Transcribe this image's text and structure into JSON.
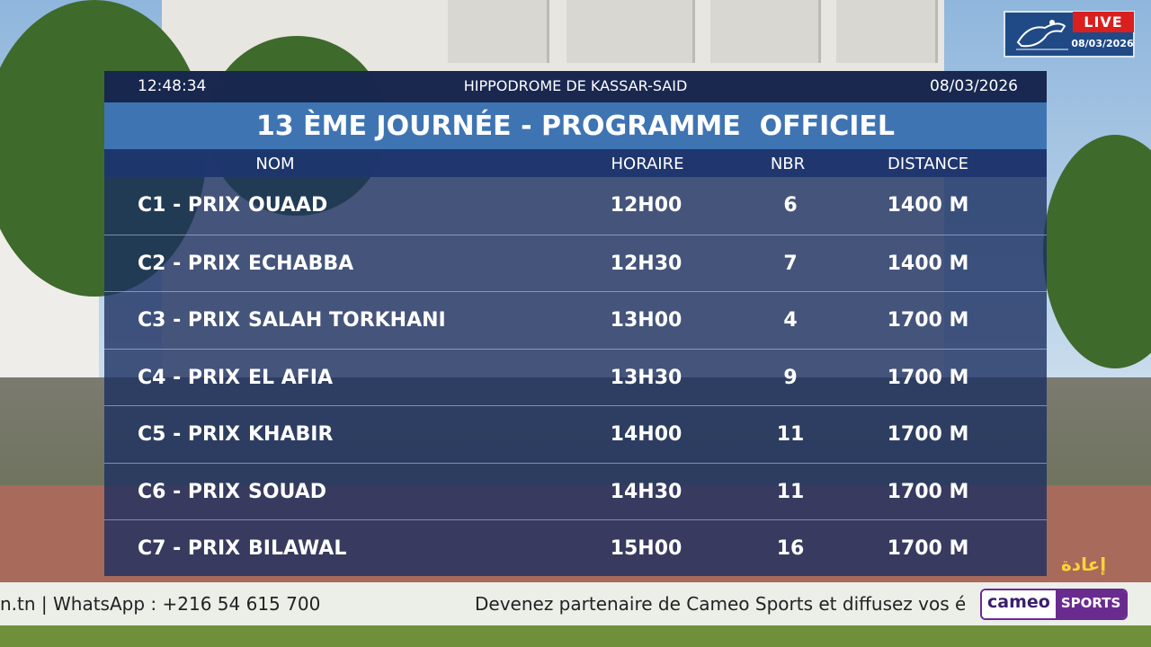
{
  "header": {
    "time": "12:48:34",
    "venue": "HIPPODROME DE KASSAR-SAID",
    "date": "08/03/2026",
    "title": "13 ÈME JOURNÉE - PROGRAMME  OFFICIEL"
  },
  "columns": {
    "name": "NOM",
    "time": "HORAIRE",
    "count": "NBR",
    "distance": "DISTANCE"
  },
  "races": [
    {
      "code": "C1 - PRIX",
      "name": "OUAAD",
      "time": "12H00",
      "count": "6",
      "distance": "1400 M"
    },
    {
      "code": "C2 - PRIX",
      "name": "ECHABBA",
      "time": "12H30",
      "count": "7",
      "distance": "1400 M"
    },
    {
      "code": "C3 - PRIX",
      "name": "SALAH TORKHANI",
      "time": "13H00",
      "count": "4",
      "distance": "1700 M"
    },
    {
      "code": "C4 - PRIX",
      "name": "EL AFIA",
      "time": "13H30",
      "count": "9",
      "distance": "1700 M"
    },
    {
      "code": "C5 - PRIX",
      "name": "KHABIR",
      "time": "14H00",
      "count": "11",
      "distance": "1700 M"
    },
    {
      "code": "C6 - PRIX",
      "name": "SOUAD",
      "time": "14H30",
      "count": "11",
      "distance": "1700 M"
    },
    {
      "code": "C7 - PRIX",
      "name": "BILAWAL",
      "time": "15H00",
      "count": "16",
      "distance": "1700 M"
    }
  ],
  "badge": {
    "live": "LIVE",
    "date": "08/03/2026",
    "logo_icon": "horse-rider-logo-icon"
  },
  "replay": "إعادة",
  "ticker": {
    "left": "n.tn | WhatsApp : +216 54 615 700",
    "right": "Devenez partenaire de Cameo Sports et diffusez vos év",
    "brand_a": "cameo",
    "brand_b": "SPORTS"
  },
  "colors": {
    "title_bar": "#3f74b3",
    "live_red": "#d9201f",
    "replay_yellow": "#ffd23a",
    "brand_purple": "#6a2b8f"
  }
}
